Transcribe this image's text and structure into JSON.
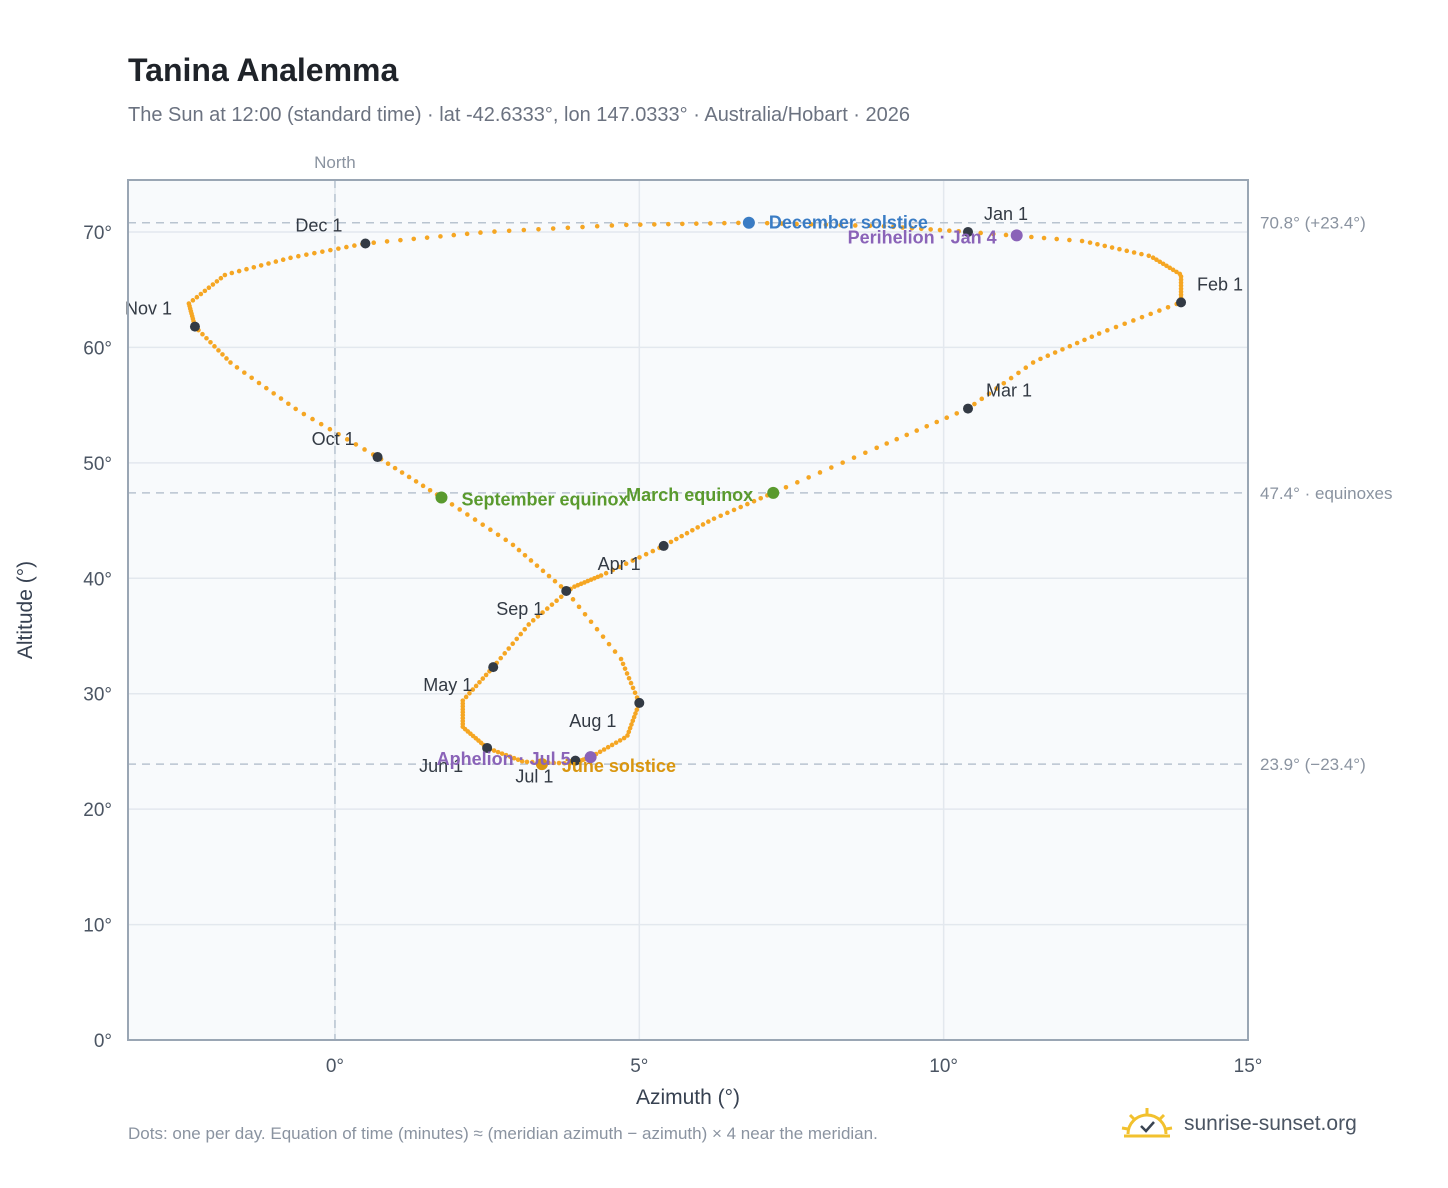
{
  "header": {
    "title": "Tanina Analemma",
    "subtitle": "The Sun at 12:00 (standard time) · lat -42.6333°, lon 147.0333° · Australia/Hobart · 2026"
  },
  "footer": {
    "note": "Dots: one per day. Equation of time (minutes) ≈ (meridian azimuth − azimuth) × 4 near the meridian.",
    "brand": "sunrise-sunset.org"
  },
  "colors": {
    "path": "#f5a623",
    "month_marker": "#333a44",
    "equinox": "#5a9a2e",
    "december_solstice": "#3a7cc4",
    "june_solstice": "#d9960f",
    "apsis": "#8a63b8",
    "plot_bg": "#f8fafc",
    "reference_line": "#b9c4d0"
  },
  "chart_data": {
    "type": "scatter",
    "title": "Tanina Analemma",
    "xlabel": "Azimuth (°)",
    "ylabel": "Altitude (°)",
    "xlim": [
      -3.4,
      15
    ],
    "ylim": [
      0,
      74.5
    ],
    "x_ticks": [
      0,
      5,
      10,
      15
    ],
    "x_tick_labels": [
      "0°",
      "5°",
      "10°",
      "15°"
    ],
    "y_ticks": [
      0,
      10,
      20,
      30,
      40,
      50,
      60,
      70
    ],
    "y_tick_labels": [
      "0°",
      "10°",
      "20°",
      "30°",
      "40°",
      "50°",
      "60°",
      "70°"
    ],
    "grid": true,
    "north_line": {
      "x": 0,
      "label": "North"
    },
    "reference_lines": [
      {
        "y": 70.8,
        "label": "70.8° (+23.4°)"
      },
      {
        "y": 47.4,
        "label": "47.4° · equinoxes"
      },
      {
        "y": 23.9,
        "label": "23.9° (−23.4°)"
      }
    ],
    "path_points": [
      [
        10.4,
        70.0
      ],
      [
        12.3,
        69.2
      ],
      [
        13.4,
        67.9
      ],
      [
        13.9,
        66.3
      ],
      [
        13.9,
        63.9
      ],
      [
        12.6,
        61.3
      ],
      [
        11.5,
        58.8
      ],
      [
        10.4,
        54.7
      ],
      [
        8.9,
        51.3
      ],
      [
        7.2,
        47.4
      ],
      [
        6.2,
        45.1
      ],
      [
        5.4,
        42.8
      ],
      [
        4.4,
        40.3
      ],
      [
        3.9,
        39.2
      ],
      [
        3.2,
        36.1
      ],
      [
        2.6,
        32.3
      ],
      [
        2.1,
        29.4
      ],
      [
        2.1,
        27.1
      ],
      [
        2.5,
        25.3
      ],
      [
        3.1,
        24.1
      ],
      [
        3.9,
        23.95
      ],
      [
        4.2,
        24.5
      ],
      [
        4.8,
        26.3
      ],
      [
        5.0,
        29.2
      ],
      [
        4.7,
        33.0
      ],
      [
        3.8,
        38.9
      ],
      [
        2.9,
        43.0
      ],
      [
        1.75,
        47.0
      ],
      [
        0.7,
        50.5
      ],
      [
        -0.6,
        54.5
      ],
      [
        -1.7,
        58.6
      ],
      [
        -2.3,
        61.8
      ],
      [
        -2.4,
        63.8
      ],
      [
        -1.8,
        66.3
      ],
      [
        -0.7,
        67.8
      ],
      [
        0.5,
        69.0
      ],
      [
        2.5,
        70.0
      ],
      [
        4.7,
        70.6
      ],
      [
        6.8,
        70.8
      ],
      [
        9.0,
        70.5
      ],
      [
        10.4,
        70.0
      ]
    ],
    "month_markers": [
      {
        "label": "Jan 1",
        "x": 10.4,
        "y": 70.0
      },
      {
        "label": "Feb 1",
        "x": 13.9,
        "y": 63.9
      },
      {
        "label": "Mar 1",
        "x": 10.4,
        "y": 54.7
      },
      {
        "label": "Apr 1",
        "x": 5.4,
        "y": 42.8
      },
      {
        "label": "May 1",
        "x": 2.6,
        "y": 32.3
      },
      {
        "label": "Jun 1",
        "x": 2.5,
        "y": 25.3
      },
      {
        "label": "Jul 1",
        "x": 3.95,
        "y": 24.2
      },
      {
        "label": "Aug 1",
        "x": 5.0,
        "y": 29.2
      },
      {
        "label": "Sep 1",
        "x": 3.8,
        "y": 38.9
      },
      {
        "label": "Oct 1",
        "x": 0.7,
        "y": 50.5
      },
      {
        "label": "Nov 1",
        "x": -2.3,
        "y": 61.8
      },
      {
        "label": "Dec 1",
        "x": 0.5,
        "y": 69.0
      }
    ],
    "events": [
      {
        "label": "December solstice",
        "x": 6.8,
        "y": 70.8,
        "kind": "december_solstice"
      },
      {
        "label": "Perihelion · Jan 4",
        "x": 11.2,
        "y": 69.7,
        "kind": "apsis"
      },
      {
        "label": "March equinox",
        "x": 7.2,
        "y": 47.4,
        "kind": "equinox"
      },
      {
        "label": "September equinox",
        "x": 1.75,
        "y": 47.0,
        "kind": "equinox"
      },
      {
        "label": "June solstice",
        "x": 3.4,
        "y": 23.9,
        "kind": "june_solstice"
      },
      {
        "label": "Aphelion · Jul 5",
        "x": 4.2,
        "y": 24.5,
        "kind": "apsis"
      }
    ]
  }
}
